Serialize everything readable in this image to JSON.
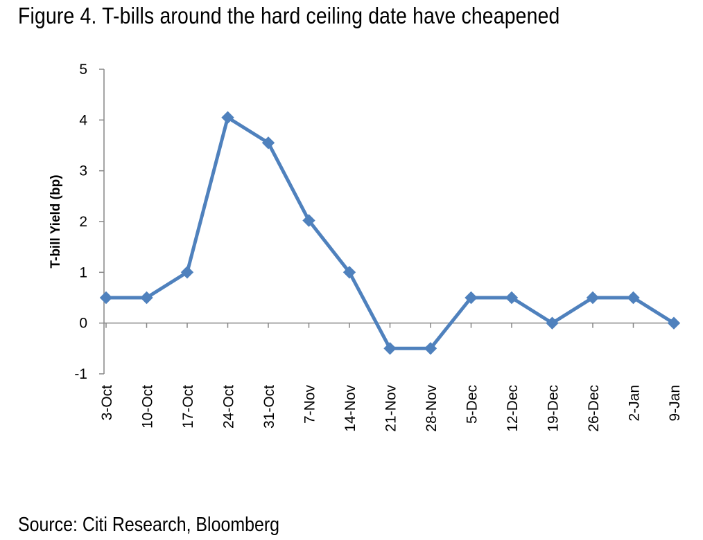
{
  "figure": {
    "title": "Figure 4. T-bills around the hard ceiling date have cheapened",
    "source": "Source: Citi Research, Bloomberg"
  },
  "chart_data": {
    "type": "line",
    "title": "",
    "xlabel": "",
    "ylabel": "T-bill Yield (bp)",
    "categories": [
      "3-Oct",
      "10-Oct",
      "17-Oct",
      "24-Oct",
      "31-Oct",
      "7-Nov",
      "14-Nov",
      "21-Nov",
      "28-Nov",
      "5-Dec",
      "12-Dec",
      "19-Dec",
      "26-Dec",
      "2-Jan",
      "9-Jan"
    ],
    "series": [
      {
        "values": [
          0.5,
          0.5,
          1.0,
          4.05,
          3.55,
          2.02,
          1.0,
          -0.5,
          -0.5,
          0.5,
          0.5,
          0.0,
          0.5,
          0.5,
          0.0
        ]
      }
    ],
    "ylim": [
      -1,
      5
    ],
    "yticks": [
      -1,
      0,
      1,
      2,
      3,
      4,
      5
    ],
    "grid": false,
    "legend": "none",
    "marker": "diamond",
    "colors": {
      "series": "#4F81BD",
      "axis": "#868686"
    }
  }
}
